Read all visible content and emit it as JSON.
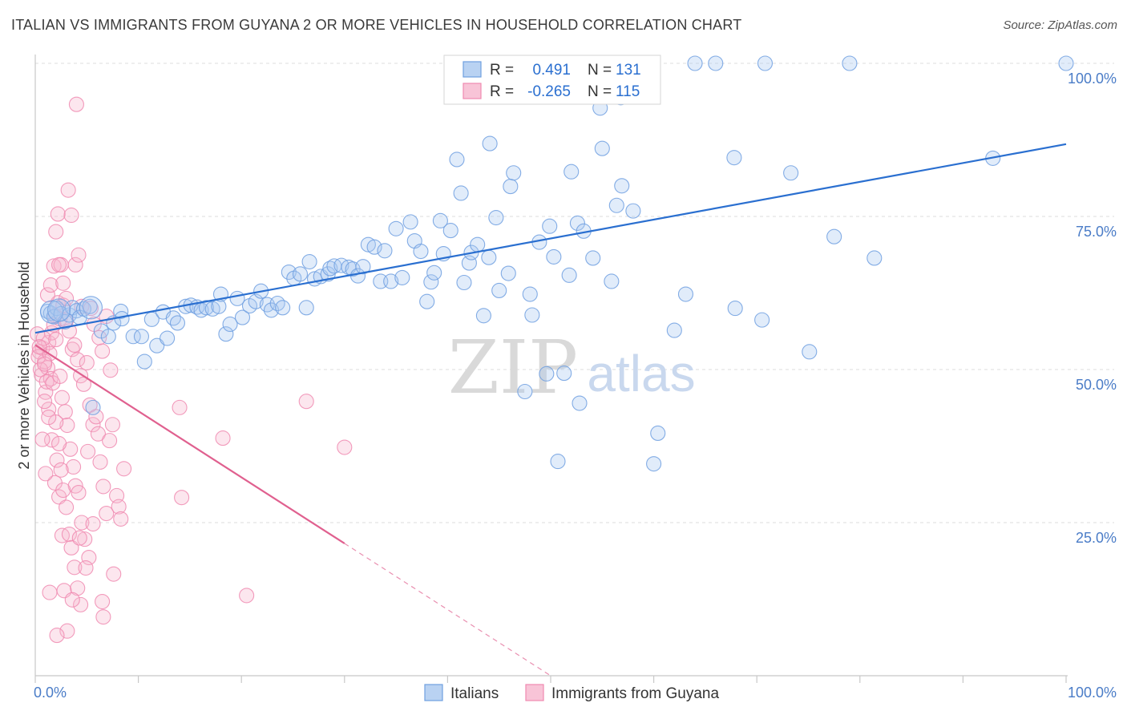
{
  "title": "ITALIAN VS IMMIGRANTS FROM GUYANA 2 OR MORE VEHICLES IN HOUSEHOLD CORRELATION CHART",
  "source": "Source: ZipAtlas.com",
  "watermark": {
    "zip": "ZIP",
    "atlas": "atlas"
  },
  "colors": {
    "italians": "#6f9fe0",
    "italians_fill": "#aac8f0",
    "italians_line": "#2a6fd0",
    "guyana": "#f08ab0",
    "guyana_fill": "#f6b8cf",
    "guyana_line": "#e0608f",
    "grid": "#dedede",
    "label": "#4a7cc7"
  },
  "legend": {
    "rows": [
      {
        "r_label": "R = ",
        "r_value": "0.491",
        "n_label": "N = ",
        "n_value": "131"
      },
      {
        "r_label": "R = ",
        "r_value": "-0.265",
        "n_label": "N = ",
        "n_value": "115"
      }
    ]
  },
  "chart_data": {
    "type": "scatter",
    "title": "ITALIAN VS IMMIGRANTS FROM GUYANA 2 OR MORE VEHICLES IN HOUSEHOLD CORRELATION CHART",
    "xlabel": "",
    "ylabel": "2 or more Vehicles in Household",
    "xlim": [
      0,
      100
    ],
    "ylim": [
      0,
      100
    ],
    "x_tick_labels": [
      "0.0%",
      "100.0%"
    ],
    "y_tick_labels": [
      "25.0%",
      "50.0%",
      "75.0%",
      "100.0%"
    ],
    "y_ticks": [
      25,
      50,
      75,
      100
    ],
    "grid": true,
    "legend_position": "top-center",
    "series": [
      {
        "name": "Italians",
        "color": "#6f9fe0",
        "r": 0.491,
        "n": 131,
        "trend": {
          "x": [
            0,
            100
          ],
          "y": [
            56.0,
            86.8
          ],
          "dashed_from": null
        },
        "points": [
          [
            1.2,
            59.5
          ],
          [
            1.5,
            59.2
          ],
          [
            1.8,
            58.6
          ],
          [
            2.1,
            60.0
          ],
          [
            2.5,
            59.1
          ],
          [
            2.9,
            57.8
          ],
          [
            3.3,
            58.9
          ],
          [
            3.6,
            60.1
          ],
          [
            4.0,
            59.6
          ],
          [
            4.3,
            58.5
          ],
          [
            4.7,
            59.9
          ],
          [
            5.3,
            60.3
          ],
          [
            5.6,
            43.8
          ],
          [
            6.4,
            56.3
          ],
          [
            7.1,
            55.4
          ],
          [
            7.6,
            57.6
          ],
          [
            8.3,
            59.5
          ],
          [
            8.4,
            58.3
          ],
          [
            9.5,
            55.4
          ],
          [
            10.3,
            55.4
          ],
          [
            10.6,
            51.3
          ],
          [
            11.3,
            58.2
          ],
          [
            11.8,
            53.9
          ],
          [
            12.4,
            59.4
          ],
          [
            12.8,
            55.1
          ],
          [
            13.4,
            58.4
          ],
          [
            13.8,
            57.6
          ],
          [
            14.6,
            60.3
          ],
          [
            15.1,
            60.5
          ],
          [
            15.7,
            60.2
          ],
          [
            16.1,
            59.7
          ],
          [
            16.6,
            60.1
          ],
          [
            17.2,
            59.9
          ],
          [
            17.8,
            60.3
          ],
          [
            18.0,
            62.3
          ],
          [
            18.5,
            55.8
          ],
          [
            18.9,
            57.4
          ],
          [
            19.6,
            61.6
          ],
          [
            20.1,
            58.5
          ],
          [
            20.8,
            60.4
          ],
          [
            21.4,
            61.1
          ],
          [
            21.9,
            62.8
          ],
          [
            22.5,
            60.6
          ],
          [
            22.9,
            59.7
          ],
          [
            23.5,
            60.8
          ],
          [
            24.0,
            60.1
          ],
          [
            24.6,
            65.9
          ],
          [
            25.1,
            64.9
          ],
          [
            25.7,
            65.6
          ],
          [
            26.3,
            60.1
          ],
          [
            26.6,
            67.6
          ],
          [
            27.1,
            64.8
          ],
          [
            27.7,
            65.2
          ],
          [
            28.4,
            65.6
          ],
          [
            28.6,
            66.5
          ],
          [
            29.0,
            66.9
          ],
          [
            29.7,
            67.0
          ],
          [
            30.4,
            66.7
          ],
          [
            30.8,
            66.4
          ],
          [
            31.3,
            65.3
          ],
          [
            31.8,
            66.8
          ],
          [
            32.3,
            70.4
          ],
          [
            32.9,
            70.0
          ],
          [
            33.5,
            64.4
          ],
          [
            33.9,
            69.4
          ],
          [
            34.5,
            64.4
          ],
          [
            35.0,
            73.0
          ],
          [
            35.6,
            65.0
          ],
          [
            36.4,
            74.1
          ],
          [
            36.8,
            71.0
          ],
          [
            37.4,
            69.3
          ],
          [
            38.0,
            61.1
          ],
          [
            38.4,
            64.3
          ],
          [
            38.7,
            65.8
          ],
          [
            39.3,
            74.3
          ],
          [
            39.6,
            68.9
          ],
          [
            40.3,
            72.7
          ],
          [
            40.9,
            84.3
          ],
          [
            41.3,
            78.8
          ],
          [
            41.6,
            64.2
          ],
          [
            42.1,
            67.4
          ],
          [
            42.3,
            69.1
          ],
          [
            42.9,
            70.4
          ],
          [
            43.5,
            58.8
          ],
          [
            44.0,
            68.3
          ],
          [
            44.1,
            86.9
          ],
          [
            44.7,
            74.8
          ],
          [
            45.0,
            62.9
          ],
          [
            45.9,
            65.7
          ],
          [
            46.1,
            79.9
          ],
          [
            46.4,
            82.1
          ],
          [
            47.5,
            46.4
          ],
          [
            48.0,
            62.3
          ],
          [
            48.2,
            58.9
          ],
          [
            48.9,
            70.8
          ],
          [
            49.6,
            49.3
          ],
          [
            49.9,
            73.4
          ],
          [
            50.3,
            68.4
          ],
          [
            50.7,
            35.0
          ],
          [
            51.3,
            49.4
          ],
          [
            51.8,
            65.4
          ],
          [
            52.0,
            82.3
          ],
          [
            52.6,
            73.9
          ],
          [
            52.8,
            44.5
          ],
          [
            53.2,
            72.6
          ],
          [
            53.4,
            95.9
          ],
          [
            54.1,
            68.2
          ],
          [
            55.0,
            86.1
          ],
          [
            54.8,
            92.7
          ],
          [
            55.9,
            64.4
          ],
          [
            56.4,
            76.8
          ],
          [
            56.9,
            80.0
          ],
          [
            56.8,
            94.4
          ],
          [
            58.0,
            75.9
          ],
          [
            60.0,
            34.6
          ],
          [
            60.4,
            39.6
          ],
          [
            62.0,
            56.4
          ],
          [
            63.1,
            62.3
          ],
          [
            64.0,
            100.0
          ],
          [
            66.0,
            100.0
          ],
          [
            67.9,
            60.0
          ],
          [
            67.8,
            84.6
          ],
          [
            70.5,
            58.1
          ],
          [
            70.8,
            100.0
          ],
          [
            73.3,
            82.1
          ],
          [
            75.1,
            52.9
          ],
          [
            77.5,
            71.7
          ],
          [
            79.0,
            100.0
          ],
          [
            81.4,
            68.2
          ],
          [
            92.9,
            84.5
          ],
          [
            100.0,
            100.0
          ]
        ]
      },
      {
        "name": "Immigrants from Guyana",
        "color": "#f08ab0",
        "r": -0.265,
        "n": 115,
        "trend": {
          "x": [
            0,
            50
          ],
          "y": [
            54.0,
            0.0
          ],
          "solid_until_x": 30
        },
        "points": [
          [
            0.2,
            55.8
          ],
          [
            0.4,
            52.9
          ],
          [
            0.6,
            49.1
          ],
          [
            0.7,
            53.5
          ],
          [
            0.9,
            51.3
          ],
          [
            1.0,
            46.3
          ],
          [
            1.2,
            50.3
          ],
          [
            1.3,
            54.4
          ],
          [
            1.5,
            48.5
          ],
          [
            1.6,
            56.0
          ],
          [
            0.3,
            52.1
          ],
          [
            0.5,
            50.0
          ],
          [
            0.8,
            55.1
          ],
          [
            1.1,
            48.0
          ],
          [
            1.4,
            52.6
          ],
          [
            1.7,
            47.8
          ],
          [
            1.8,
            57.3
          ],
          [
            2.0,
            54.9
          ],
          [
            2.2,
            60.9
          ],
          [
            2.4,
            58.3
          ],
          [
            0.4,
            53.7
          ],
          [
            0.9,
            50.9
          ],
          [
            1.3,
            43.5
          ],
          [
            1.6,
            38.5
          ],
          [
            1.9,
            31.5
          ],
          [
            2.1,
            35.2
          ],
          [
            2.3,
            29.2
          ],
          [
            2.6,
            22.9
          ],
          [
            2.8,
            13.9
          ],
          [
            3.1,
            7.3
          ],
          [
            1.2,
            62.2
          ],
          [
            1.5,
            63.8
          ],
          [
            1.8,
            66.9
          ],
          [
            2.0,
            72.5
          ],
          [
            2.2,
            75.4
          ],
          [
            2.5,
            67.1
          ],
          [
            2.7,
            60.5
          ],
          [
            3.0,
            58.0
          ],
          [
            3.3,
            56.3
          ],
          [
            3.6,
            53.3
          ],
          [
            3.2,
            79.3
          ],
          [
            3.5,
            75.2
          ],
          [
            3.9,
            67.1
          ],
          [
            4.2,
            68.7
          ],
          [
            4.5,
            60.3
          ],
          [
            4.0,
            93.3
          ],
          [
            3.8,
            54.0
          ],
          [
            4.1,
            51.6
          ],
          [
            4.4,
            49.0
          ],
          [
            4.7,
            47.6
          ],
          [
            2.4,
            48.9
          ],
          [
            2.6,
            45.4
          ],
          [
            2.9,
            43.1
          ],
          [
            3.1,
            40.9
          ],
          [
            3.4,
            37.0
          ],
          [
            3.7,
            34.1
          ],
          [
            3.9,
            31.0
          ],
          [
            4.2,
            29.9
          ],
          [
            4.5,
            25.0
          ],
          [
            4.8,
            22.3
          ],
          [
            2.0,
            41.4
          ],
          [
            2.3,
            37.9
          ],
          [
            2.5,
            33.6
          ],
          [
            2.7,
            30.3
          ],
          [
            3.0,
            27.5
          ],
          [
            3.3,
            23.1
          ],
          [
            3.5,
            20.9
          ],
          [
            3.8,
            17.7
          ],
          [
            4.1,
            14.3
          ],
          [
            4.4,
            11.6
          ],
          [
            5.0,
            51.1
          ],
          [
            5.3,
            44.2
          ],
          [
            5.6,
            41.0
          ],
          [
            5.9,
            42.3
          ],
          [
            6.1,
            39.5
          ],
          [
            6.3,
            34.9
          ],
          [
            6.6,
            30.9
          ],
          [
            6.9,
            26.5
          ],
          [
            7.2,
            38.4
          ],
          [
            7.5,
            41.0
          ],
          [
            5.4,
            60.0
          ],
          [
            5.7,
            57.4
          ],
          [
            6.2,
            55.2
          ],
          [
            6.5,
            53.0
          ],
          [
            6.9,
            58.7
          ],
          [
            7.3,
            49.9
          ],
          [
            7.6,
            16.6
          ],
          [
            7.9,
            29.4
          ],
          [
            8.1,
            27.6
          ],
          [
            8.3,
            25.6
          ],
          [
            8.6,
            33.8
          ],
          [
            6.5,
            12.1
          ],
          [
            6.6,
            9.6
          ],
          [
            5.2,
            19.3
          ],
          [
            5.6,
            24.8
          ],
          [
            4.9,
            17.6
          ],
          [
            4.3,
            22.5
          ],
          [
            3.6,
            12.4
          ],
          [
            2.1,
            6.6
          ],
          [
            1.4,
            13.6
          ],
          [
            14.0,
            43.8
          ],
          [
            14.2,
            29.1
          ],
          [
            18.2,
            38.8
          ],
          [
            20.5,
            13.1
          ],
          [
            26.3,
            44.8
          ],
          [
            30.0,
            37.3
          ],
          [
            5.1,
            36.6
          ],
          [
            3.0,
            61.6
          ],
          [
            2.7,
            64.1
          ],
          [
            1.9,
            58.8
          ],
          [
            2.3,
            67.1
          ],
          [
            0.9,
            44.8
          ],
          [
            1.3,
            42.2
          ],
          [
            1.0,
            33.0
          ],
          [
            0.7,
            38.6
          ]
        ]
      }
    ]
  },
  "bottom_legend": [
    {
      "label": "Italians"
    },
    {
      "label": "Immigrants from Guyana"
    }
  ]
}
